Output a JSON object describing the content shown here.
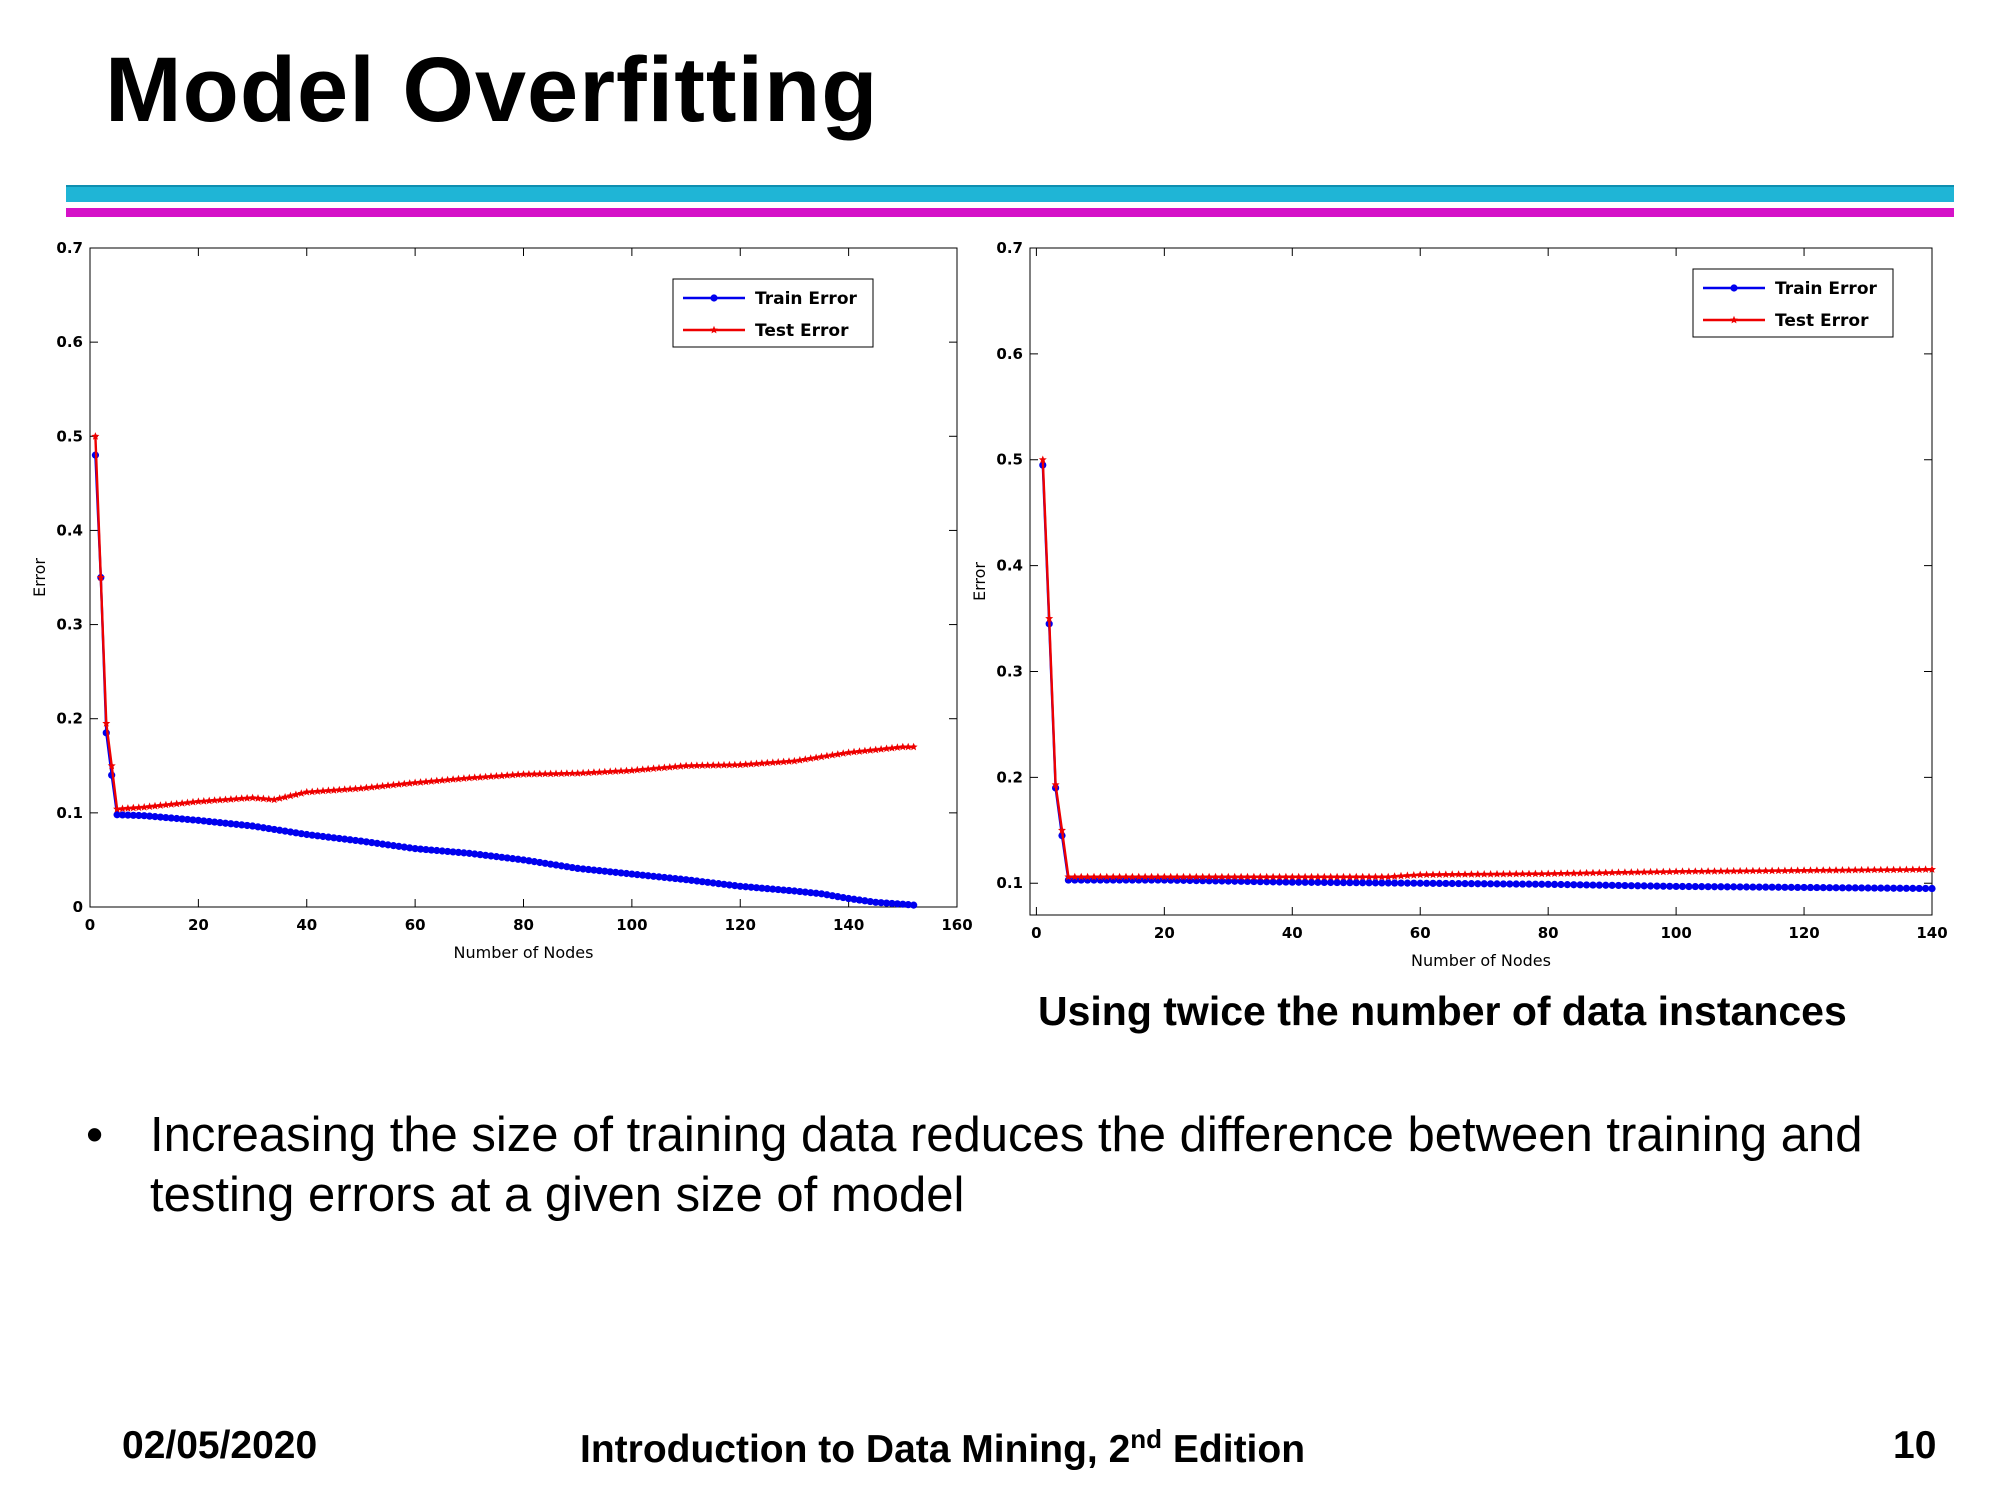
{
  "slide": {
    "title": "Model Overfitting",
    "caption": "Using twice the number of data instances",
    "bullet_symbol": "•",
    "bullet_text": "Increasing the size of training data reduces the difference between training and testing errors at a given size of model",
    "footer": {
      "date": "02/05/2020",
      "book_prefix": "Introduction to Data Mining, 2",
      "book_sup": "nd",
      "book_suffix": " Edition",
      "page": "10"
    },
    "colors": {
      "cyan_rule": "#1fb5d6",
      "magenta_rule": "#d512c8",
      "train": "#0000ee",
      "test": "#ee0000"
    }
  },
  "chart_data": [
    {
      "type": "line",
      "xlabel": "Number of Nodes",
      "ylabel": "Error",
      "xlim": [
        0,
        160
      ],
      "ylim": [
        0,
        0.7
      ],
      "xticks": [
        0,
        20,
        40,
        60,
        80,
        100,
        120,
        140,
        160
      ],
      "yticks": [
        0,
        0.1,
        0.2,
        0.3,
        0.4,
        0.5,
        0.6,
        0.7
      ],
      "ytick_labels": [
        "0",
        "0.1",
        "0.2",
        "0.3",
        "0.4",
        "0.5",
        "0.6",
        "0.7"
      ],
      "grid": false,
      "legend": "top-right",
      "series": [
        {
          "name": "Train Error",
          "color": "#0000ee",
          "x": [
            1,
            2,
            3,
            4,
            5,
            10,
            20,
            30,
            40,
            50,
            60,
            70,
            80,
            90,
            100,
            110,
            120,
            130,
            135,
            140,
            145,
            150,
            152
          ],
          "y": [
            0.48,
            0.35,
            0.185,
            0.14,
            0.098,
            0.097,
            0.092,
            0.086,
            0.077,
            0.07,
            0.062,
            0.057,
            0.05,
            0.041,
            0.035,
            0.029,
            0.022,
            0.017,
            0.014,
            0.009,
            0.005,
            0.003,
            0.002
          ]
        },
        {
          "name": "Test Error",
          "color": "#ee0000",
          "x": [
            1,
            2,
            3,
            4,
            5,
            10,
            20,
            30,
            34,
            40,
            50,
            60,
            70,
            80,
            90,
            100,
            110,
            120,
            130,
            140,
            145,
            150,
            152
          ],
          "y": [
            0.5,
            0.35,
            0.195,
            0.15,
            0.104,
            0.106,
            0.112,
            0.116,
            0.114,
            0.122,
            0.126,
            0.132,
            0.137,
            0.141,
            0.142,
            0.145,
            0.15,
            0.151,
            0.155,
            0.164,
            0.167,
            0.17,
            0.17
          ]
        }
      ]
    },
    {
      "type": "line",
      "xlabel": "Number of Nodes",
      "ylabel": "Error",
      "xlim": [
        -1,
        140
      ],
      "ylim": [
        0.07,
        0.7
      ],
      "xticks": [
        0,
        20,
        40,
        60,
        80,
        100,
        120,
        140
      ],
      "yticks": [
        0.1,
        0.2,
        0.3,
        0.4,
        0.5,
        0.6,
        0.7
      ],
      "ytick_labels": [
        "0.1",
        "0.2",
        "0.3",
        "0.4",
        "0.5",
        "0.6",
        "0.7"
      ],
      "grid": false,
      "legend": "top-right",
      "series": [
        {
          "name": "Train Error",
          "color": "#0000ee",
          "x": [
            1,
            2,
            3,
            4,
            5,
            20,
            40,
            60,
            80,
            100,
            120,
            140
          ],
          "y": [
            0.495,
            0.345,
            0.19,
            0.145,
            0.103,
            0.103,
            0.101,
            0.1,
            0.099,
            0.097,
            0.096,
            0.095
          ]
        },
        {
          "name": "Test Error",
          "color": "#ee0000",
          "x": [
            1,
            2,
            3,
            4,
            5,
            20,
            40,
            55,
            60,
            80,
            100,
            120,
            140
          ],
          "y": [
            0.5,
            0.35,
            0.193,
            0.15,
            0.106,
            0.106,
            0.106,
            0.106,
            0.108,
            0.109,
            0.111,
            0.112,
            0.113
          ]
        }
      ]
    }
  ]
}
